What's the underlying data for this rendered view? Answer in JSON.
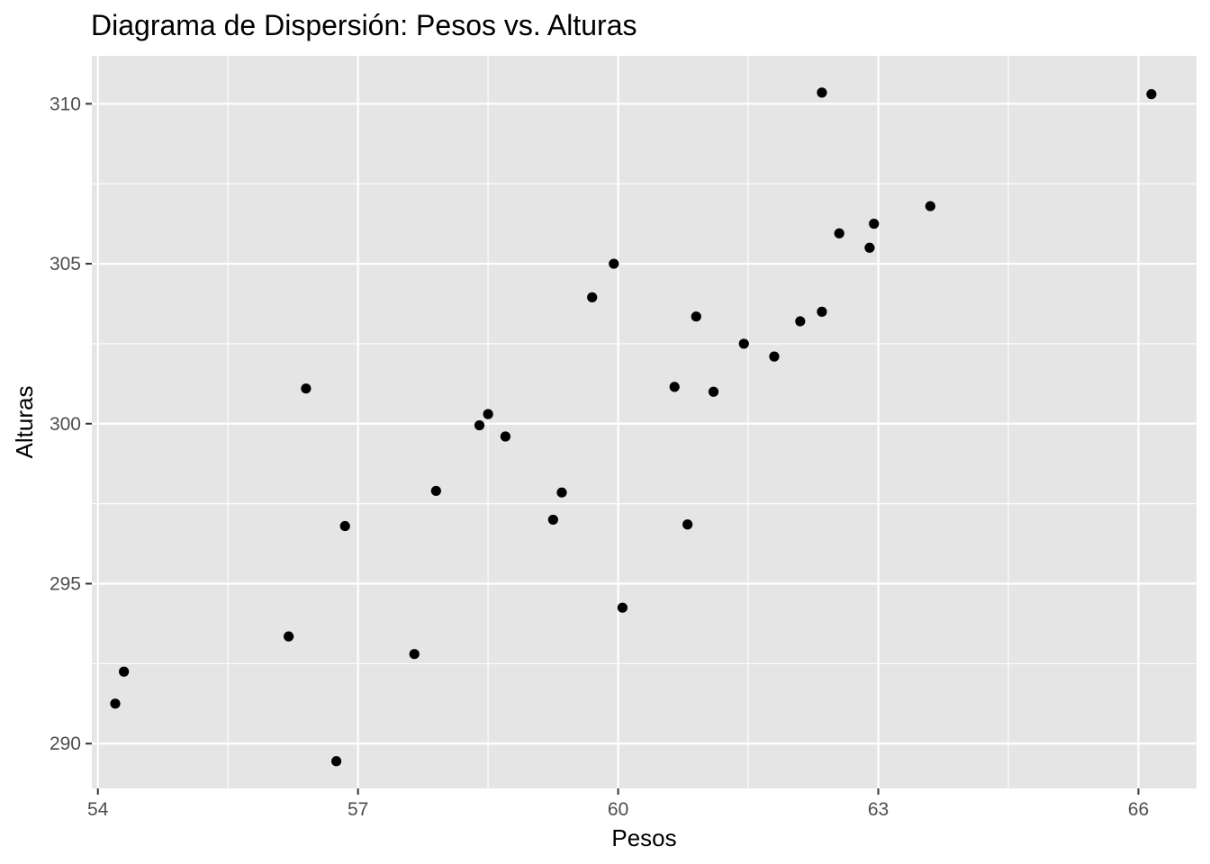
{
  "chart_data": {
    "type": "scatter",
    "title": "Diagrama de Dispersión: Pesos vs. Alturas",
    "xlabel": "Pesos",
    "ylabel": "Alturas",
    "xlim": [
      53.93,
      66.67
    ],
    "ylim": [
      288.6,
      311.5
    ],
    "x_ticks": [
      54,
      57,
      60,
      63,
      66
    ],
    "y_ticks": [
      290,
      295,
      300,
      305,
      310
    ],
    "x_tick_labels": [
      "54",
      "57",
      "60",
      "63",
      "66"
    ],
    "y_tick_labels": [
      "290",
      "295",
      "300",
      "305",
      "310"
    ],
    "grid": true,
    "legend": "none",
    "panel_background": "#e5e5e5",
    "point_color": "#000000",
    "points": [
      {
        "x": 62.35,
        "y": 310.35
      },
      {
        "x": 66.15,
        "y": 310.3
      },
      {
        "x": 63.6,
        "y": 306.8
      },
      {
        "x": 62.95,
        "y": 306.25
      },
      {
        "x": 62.55,
        "y": 305.95
      },
      {
        "x": 62.9,
        "y": 305.5
      },
      {
        "x": 59.95,
        "y": 305.0
      },
      {
        "x": 59.7,
        "y": 303.95
      },
      {
        "x": 62.35,
        "y": 303.5
      },
      {
        "x": 60.9,
        "y": 303.35
      },
      {
        "x": 62.1,
        "y": 303.2
      },
      {
        "x": 61.45,
        "y": 302.5
      },
      {
        "x": 61.8,
        "y": 302.1
      },
      {
        "x": 56.4,
        "y": 301.1
      },
      {
        "x": 60.65,
        "y": 301.15
      },
      {
        "x": 61.1,
        "y": 301.0
      },
      {
        "x": 58.5,
        "y": 300.3
      },
      {
        "x": 58.4,
        "y": 299.95
      },
      {
        "x": 58.7,
        "y": 299.6
      },
      {
        "x": 57.9,
        "y": 297.9
      },
      {
        "x": 59.35,
        "y": 297.85
      },
      {
        "x": 59.25,
        "y": 297.0
      },
      {
        "x": 56.85,
        "y": 296.8
      },
      {
        "x": 60.8,
        "y": 296.85
      },
      {
        "x": 60.05,
        "y": 294.25
      },
      {
        "x": 56.2,
        "y": 293.35
      },
      {
        "x": 57.65,
        "y": 292.8
      },
      {
        "x": 54.3,
        "y": 292.25
      },
      {
        "x": 54.2,
        "y": 291.25
      },
      {
        "x": 56.75,
        "y": 289.45
      }
    ]
  }
}
